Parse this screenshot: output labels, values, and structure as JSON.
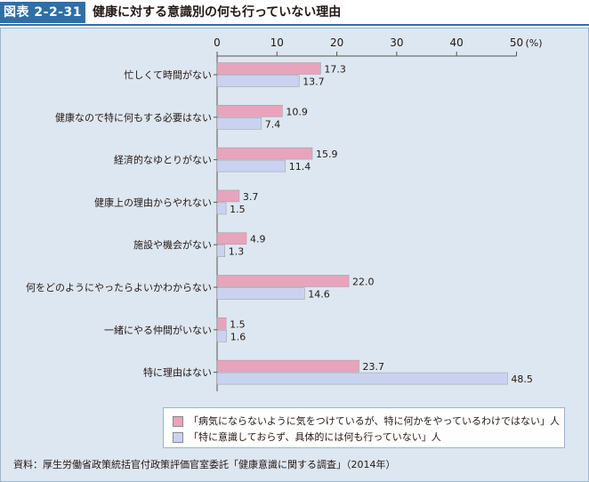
{
  "header": {
    "figure_label": "図表 2-2-31",
    "title": "健康に対する意識別の何も行っていない理由"
  },
  "colors": {
    "series1": "#e8a4bd",
    "series2": "#c9d3ef",
    "header_blue": "#2f6fa8",
    "panel_bg": "#dde7f1"
  },
  "chart_data": {
    "type": "bar",
    "orientation": "horizontal",
    "categories": [
      "忙しくて時間がない",
      "健康なので特に何もする必要はない",
      "経済的なゆとりがない",
      "健康上の理由からやれない",
      "施設や機会がない",
      "何をどのようにやったらよいかわからない",
      "一緒にやる仲間がいない",
      "特に理由はない"
    ],
    "series": [
      {
        "name": "「病気にならないように気をつけているが、特に何かをやっているわけではない」人",
        "values": [
          17.3,
          10.9,
          15.9,
          3.7,
          4.9,
          22.0,
          1.5,
          23.7
        ],
        "labels": [
          "17.3",
          "10.9",
          "15.9",
          "3.7",
          "4.9",
          "22.0",
          "1.5",
          "23.7"
        ]
      },
      {
        "name": "「特に意識しておらず、具体的には何も行っていない」人",
        "values": [
          13.7,
          7.4,
          11.4,
          1.5,
          1.3,
          14.6,
          1.6,
          48.5
        ],
        "labels": [
          "13.7",
          "7.4",
          "11.4",
          "1.5",
          "1.3",
          "14.6",
          "1.6",
          "48.5"
        ]
      }
    ],
    "xlim": [
      0,
      50
    ],
    "ticks": [
      "0",
      "10",
      "20",
      "30",
      "40",
      "50"
    ],
    "unit": "(%)",
    "grid": false,
    "legend_position": "bottom"
  },
  "source": "資料：厚生労働省政策統括官付政策評価官室委託「健康意識に関する調査」（2014年）"
}
